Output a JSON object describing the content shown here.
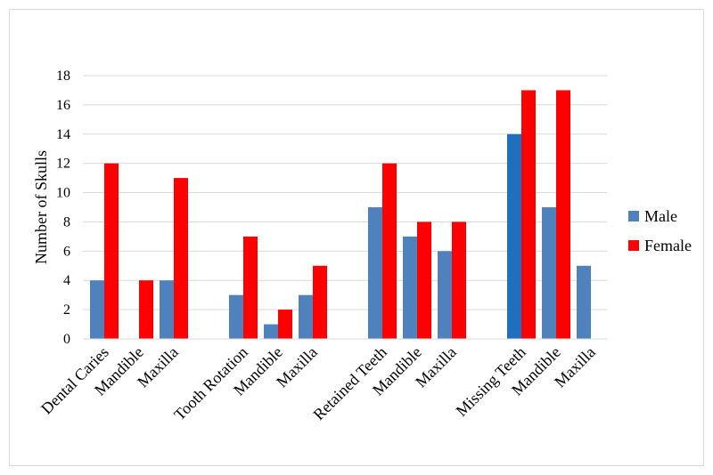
{
  "chart_data": {
    "type": "bar",
    "ylabel": "Number of Skulls",
    "ylim": [
      0,
      18
    ],
    "y_ticks": [
      0,
      2,
      4,
      6,
      8,
      10,
      12,
      14,
      16,
      18
    ],
    "grid": true,
    "legend_position": "right",
    "categories": [
      "Dental Caries",
      "Mandible",
      "Maxilla",
      "Tooth Rotation",
      "Mandible",
      "Maxilla",
      "Retained Teeth",
      "Mandible",
      "Maxilla",
      "Missing Teeth",
      "Mandible",
      "Maxilla"
    ],
    "series": [
      {
        "name": "Male",
        "color": "#4f81bd",
        "values": [
          4,
          0,
          4,
          3,
          1,
          3,
          9,
          7,
          6,
          14,
          9,
          5
        ],
        "point_colors": {
          "9": "#1f6fc0"
        }
      },
      {
        "name": "Female",
        "color": "#ff0000",
        "values": [
          12,
          4,
          11,
          7,
          2,
          5,
          12,
          8,
          8,
          17,
          17,
          0
        ]
      }
    ]
  }
}
